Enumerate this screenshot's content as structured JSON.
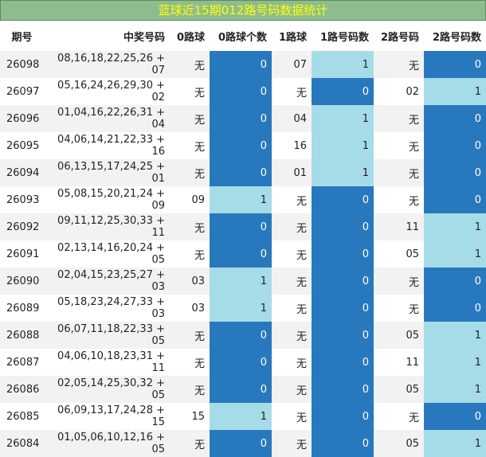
{
  "title": "蓝球近15期012路号码数据统计",
  "columns": [
    "期号",
    "中奖号码",
    "0路球",
    "0路球个数",
    "1路球",
    "1路号码数",
    "2路号码",
    "2路号码数"
  ],
  "colors": {
    "title_bg": "#8fbc8f",
    "title_text": "#ffff00",
    "zero": "#2878bd",
    "one": "#a6dce8",
    "row_alt": "#f2f2f2"
  },
  "chart_data": {
    "type": "table",
    "title": "蓝球近15期012路号码数据统计",
    "columns": [
      "期号",
      "中奖号码",
      "0路球",
      "0路球个数",
      "1路球",
      "1路号码数",
      "2路号码",
      "2路号码数"
    ],
    "rows": [
      [
        "26098",
        "08,16,18,22,25,26 + 07",
        "无",
        "0",
        "07",
        "1",
        "无",
        "0"
      ],
      [
        "26097",
        "05,16,24,26,29,30 + 02",
        "无",
        "0",
        "无",
        "0",
        "02",
        "1"
      ],
      [
        "26096",
        "01,04,16,22,26,31 + 04",
        "无",
        "0",
        "04",
        "1",
        "无",
        "0"
      ],
      [
        "26095",
        "04,06,14,21,22,33 + 16",
        "无",
        "0",
        "16",
        "1",
        "无",
        "0"
      ],
      [
        "26094",
        "06,13,15,17,24,25 + 01",
        "无",
        "0",
        "01",
        "1",
        "无",
        "0"
      ],
      [
        "26093",
        "05,08,15,20,21,24 + 09",
        "09",
        "1",
        "无",
        "0",
        "无",
        "0"
      ],
      [
        "26092",
        "09,11,12,25,30,33 + 11",
        "无",
        "0",
        "无",
        "0",
        "11",
        "1"
      ],
      [
        "26091",
        "02,13,14,16,20,24 + 05",
        "无",
        "0",
        "无",
        "0",
        "05",
        "1"
      ],
      [
        "26090",
        "02,04,15,23,25,27 + 03",
        "03",
        "1",
        "无",
        "0",
        "无",
        "0"
      ],
      [
        "26089",
        "05,18,23,24,27,33 + 03",
        "03",
        "1",
        "无",
        "0",
        "无",
        "0"
      ],
      [
        "26088",
        "06,07,11,18,22,33 + 05",
        "无",
        "0",
        "无",
        "0",
        "05",
        "1"
      ],
      [
        "26087",
        "04,06,10,18,23,31 + 11",
        "无",
        "0",
        "无",
        "0",
        "11",
        "1"
      ],
      [
        "26086",
        "02,05,14,25,30,32 + 05",
        "无",
        "0",
        "无",
        "0",
        "05",
        "1"
      ],
      [
        "26085",
        "06,09,13,17,24,28 + 15",
        "15",
        "1",
        "无",
        "0",
        "无",
        "0"
      ],
      [
        "26084",
        "01,05,06,10,12,16 + 05",
        "无",
        "0",
        "无",
        "0",
        "05",
        "1"
      ]
    ]
  }
}
